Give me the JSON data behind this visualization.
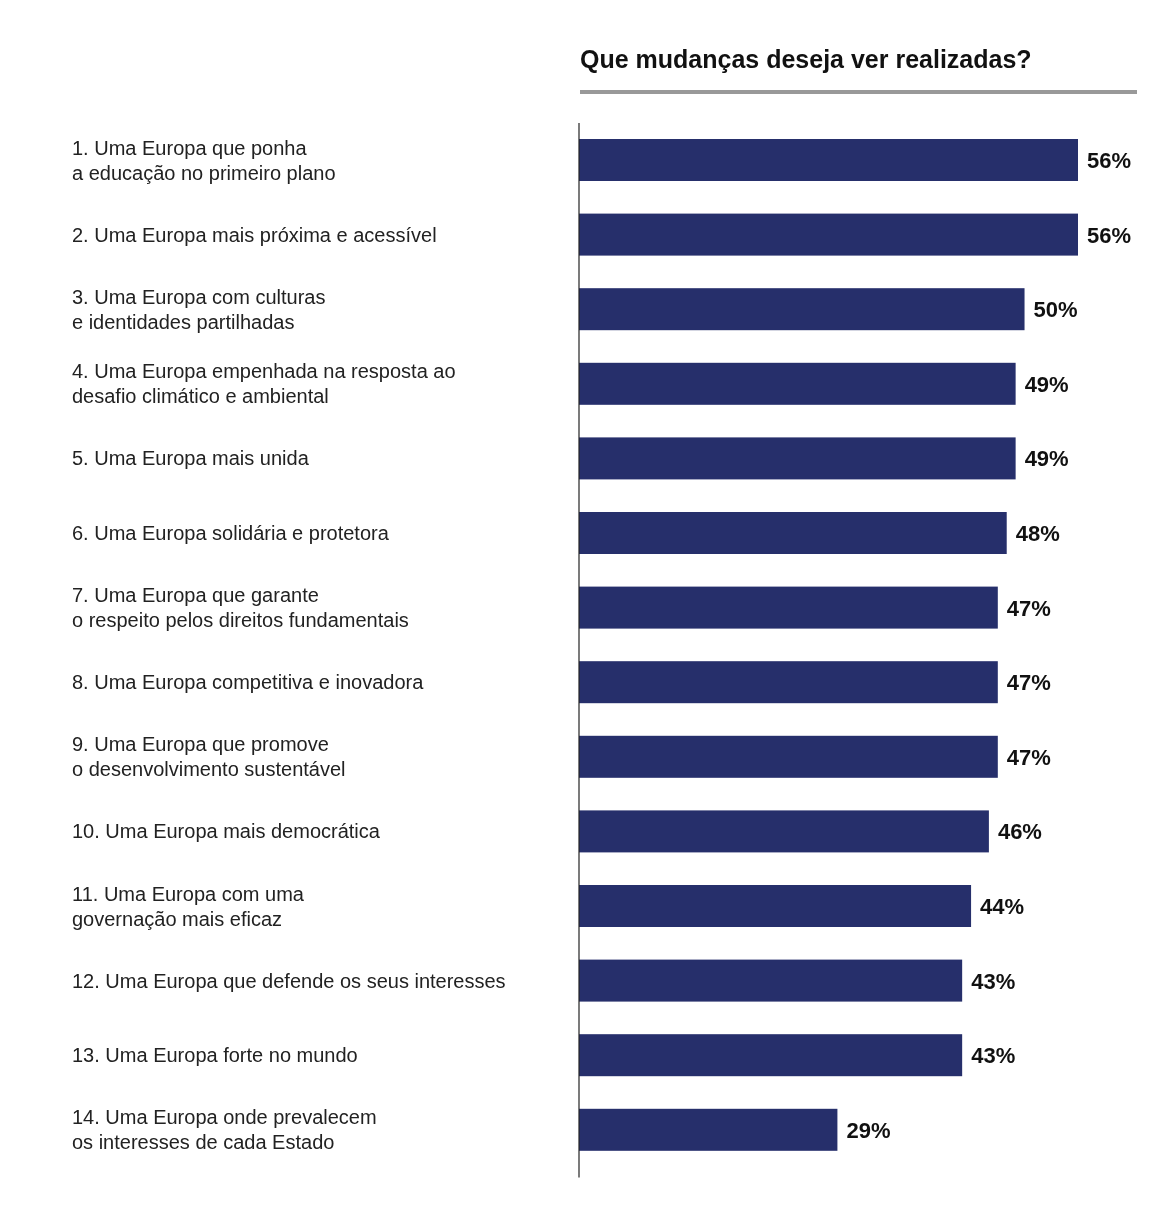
{
  "chart_data": {
    "type": "bar",
    "orientation": "horizontal",
    "title": "Que mudanças deseja ver realizadas?",
    "categories": [
      "1. Uma Europa que ponha\na educação no primeiro plano",
      "2. Uma Europa mais próxima e acessível",
      "3. Uma Europa com culturas\ne identidades partilhadas",
      "4. Uma Europa empenhada na resposta ao\ndesafio climático e ambiental",
      "5. Uma Europa mais unida",
      "6. Uma Europa solidária e protetora",
      "7. Uma Europa que garante\no respeito pelos direitos fundamentais",
      "8. Uma Europa competitiva e inovadora",
      "9. Uma Europa que promove\no desenvolvimento sustentável",
      "10. Uma Europa mais democrática",
      "11. Uma Europa com uma\ngovernação mais eficaz",
      "12. Uma Europa que defende os seus interesses",
      "13. Uma Europa forte no mundo",
      "14. Uma Europa onde prevalecem\nos interesses de cada Estado"
    ],
    "values": [
      56,
      56,
      50,
      49,
      49,
      48,
      47,
      47,
      47,
      46,
      44,
      43,
      43,
      29
    ],
    "value_labels": [
      "56%",
      "56%",
      "50%",
      "49%",
      "49%",
      "48%",
      "47%",
      "47%",
      "47%",
      "46%",
      "44%",
      "43%",
      "43%",
      "29%"
    ],
    "color": "#262f6b"
  }
}
